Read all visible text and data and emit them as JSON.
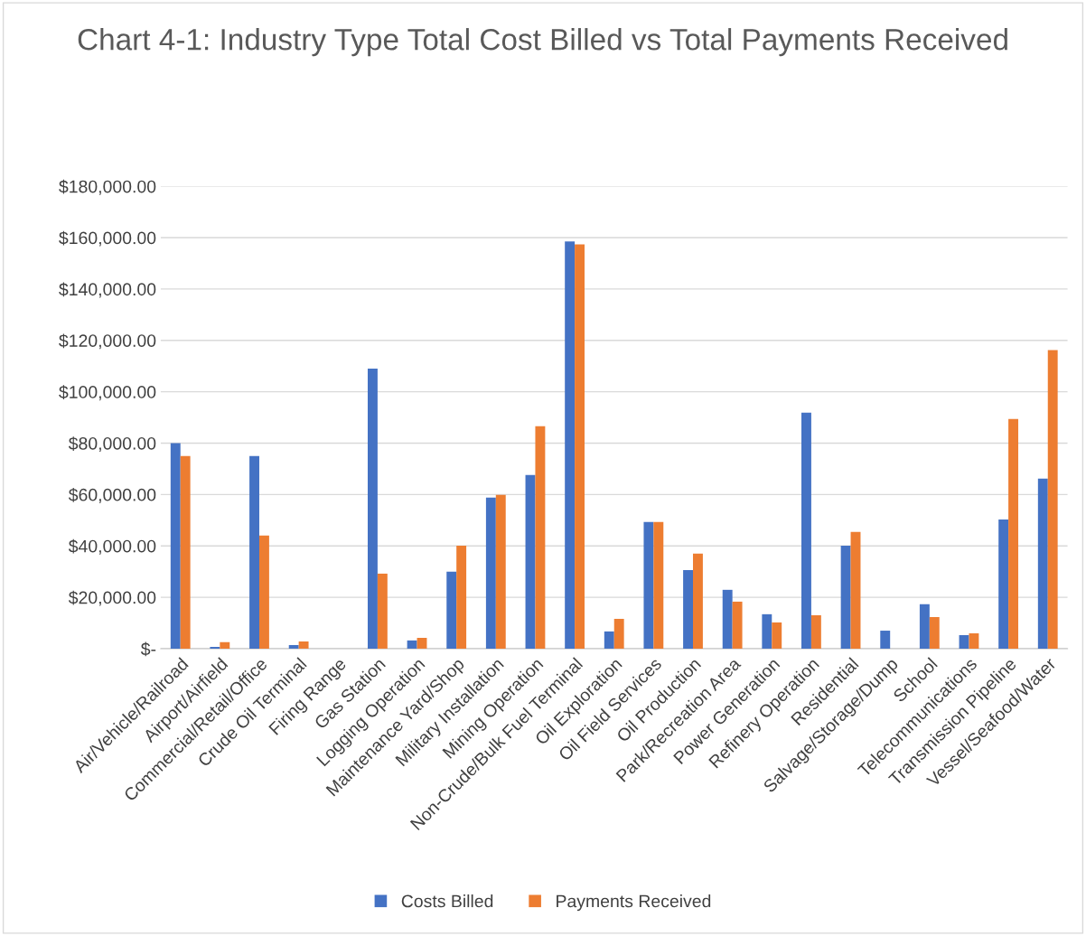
{
  "chart_data": {
    "type": "bar",
    "title": "Chart 4-1: Industry Type Total Cost Billed vs Total Payments Received",
    "categories": [
      "Air/Vehicle/Railroad",
      "Airport/Airfield",
      "Commercial/Retail/Office",
      "Crude Oil Terminal",
      "Firing Range",
      "Gas Station",
      "Logging Operation",
      "Maintenance Yard/Shop",
      "Military Installation",
      "Mining Operation",
      "Non-Crude/Bulk Fuel Terminal",
      "Oil Exploration",
      "Oil Field Services",
      "Oil Production",
      "Park/Recreation Area",
      "Power Generation",
      "Refinery Operation",
      "Residential",
      "Salvage/Storage/Dump",
      "School",
      "Telecommunications",
      "Transmission Pipeline",
      "Vessel/Seafood/Water"
    ],
    "series": [
      {
        "name": "Costs Billed",
        "color": "#4472c4",
        "values": [
          80000,
          700,
          75000,
          1400,
          0,
          109000,
          3200,
          30000,
          58800,
          67600,
          158500,
          6700,
          49300,
          30600,
          22900,
          13400,
          91900,
          40100,
          7000,
          17300,
          5300,
          50300,
          66200
        ]
      },
      {
        "name": "Payments Received",
        "color": "#ed7d31",
        "values": [
          75000,
          2500,
          44000,
          2800,
          0,
          29200,
          4200,
          40100,
          59900,
          86600,
          157400,
          11600,
          49300,
          37000,
          18300,
          10200,
          13000,
          45400,
          0,
          12300,
          6000,
          89400,
          116200
        ]
      }
    ],
    "ylim": [
      0,
      180000
    ],
    "yticks": [
      {
        "value": 0,
        "label": "$-"
      },
      {
        "value": 20000,
        "label": "$20,000.00"
      },
      {
        "value": 40000,
        "label": "$40,000.00"
      },
      {
        "value": 60000,
        "label": "$60,000.00"
      },
      {
        "value": 80000,
        "label": "$80,000.00"
      },
      {
        "value": 100000,
        "label": "$100,000.00"
      },
      {
        "value": 120000,
        "label": "$120,000.00"
      },
      {
        "value": 140000,
        "label": "$140,000.00"
      },
      {
        "value": 160000,
        "label": "$160,000.00"
      },
      {
        "value": 180000,
        "label": "$180,000.00"
      }
    ],
    "grid": "y",
    "legend": "bottom"
  }
}
